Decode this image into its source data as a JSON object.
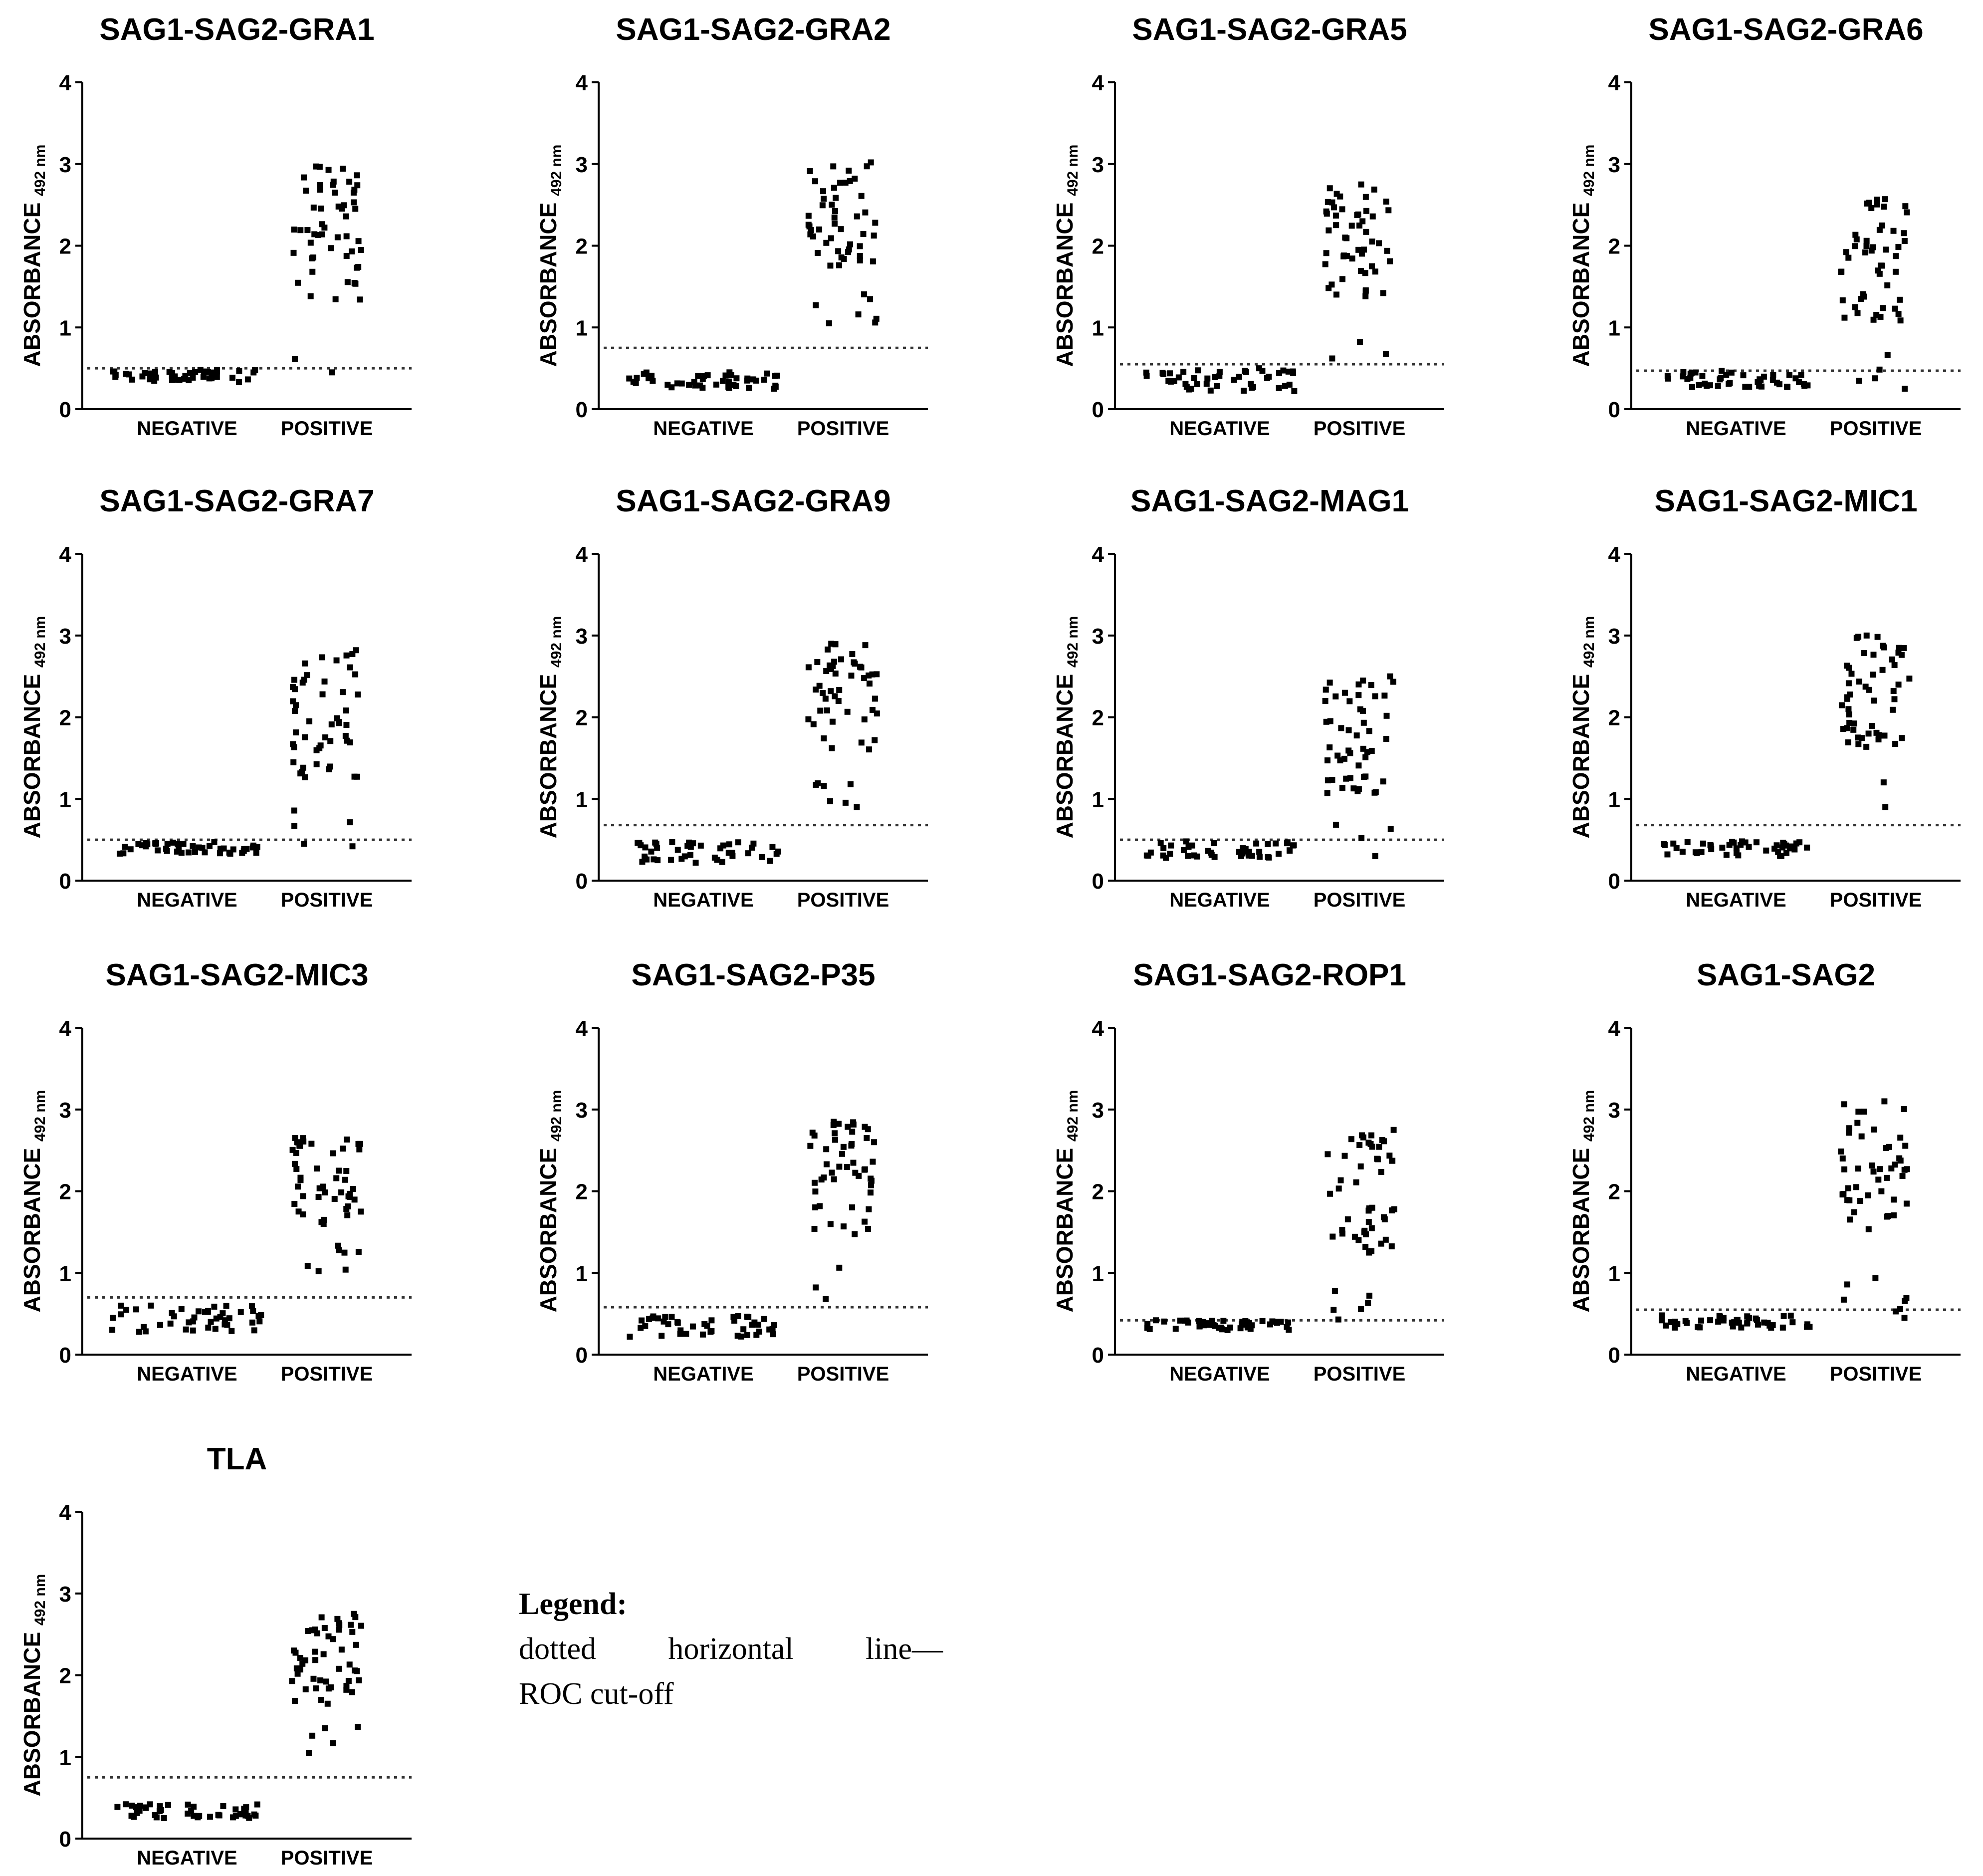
{
  "chart_data": [
    {
      "type": "scatter",
      "title": "SAG1-SAG2-GRA1",
      "ylabel": "ABSORBANCE",
      "ylabel_sub": "492 nm",
      "categories": [
        "NEGATIVE",
        "POSITIVE"
      ],
      "ylim": [
        0,
        4
      ],
      "yticks": [
        "0",
        "1",
        "2",
        "3",
        "4"
      ],
      "cutoff": 0.5,
      "negative": {
        "n": 45,
        "min": 0.33,
        "max": 0.48
      },
      "positive": {
        "n": 55,
        "min": 0.45,
        "max": 2.97
      }
    },
    {
      "type": "scatter",
      "title": "SAG1-SAG2-GRA2",
      "ylabel": "ABSORBANCE",
      "ylabel_sub": "492 nm",
      "categories": [
        "NEGATIVE",
        "POSITIVE"
      ],
      "ylim": [
        0,
        4
      ],
      "yticks": [
        "0",
        "1",
        "2",
        "3",
        "4"
      ],
      "cutoff": 0.75,
      "negative": {
        "n": 45,
        "min": 0.25,
        "max": 0.45
      },
      "positive": {
        "n": 55,
        "min": 1.05,
        "max": 3.02
      }
    },
    {
      "type": "scatter",
      "title": "SAG1-SAG2-GRA5",
      "ylabel": "ABSORBANCE",
      "ylabel_sub": "492 nm",
      "categories": [
        "NEGATIVE",
        "POSITIVE"
      ],
      "ylim": [
        0,
        4
      ],
      "yticks": [
        "0",
        "1",
        "2",
        "3",
        "4"
      ],
      "cutoff": 0.55,
      "negative": {
        "n": 45,
        "min": 0.22,
        "max": 0.5
      },
      "positive": {
        "n": 55,
        "min": 0.62,
        "max": 2.75
      }
    },
    {
      "type": "scatter",
      "title": "SAG1-SAG2-GRA6",
      "ylabel": "ABSORBANCE",
      "ylabel_sub": "492 nm",
      "categories": [
        "NEGATIVE",
        "POSITIVE"
      ],
      "ylim": [
        0,
        4
      ],
      "yticks": [
        "0",
        "1",
        "2",
        "3",
        "4"
      ],
      "cutoff": 0.47,
      "negative": {
        "n": 45,
        "min": 0.27,
        "max": 0.47
      },
      "positive": {
        "n": 55,
        "min": 0.25,
        "max": 2.57
      }
    },
    {
      "type": "scatter",
      "title": "SAG1-SAG2-GRA7",
      "ylabel": "ABSORBANCE",
      "ylabel_sub": "492 nm",
      "categories": [
        "NEGATIVE",
        "POSITIVE"
      ],
      "ylim": [
        0,
        4
      ],
      "yticks": [
        "0",
        "1",
        "2",
        "3",
        "4"
      ],
      "cutoff": 0.5,
      "negative": {
        "n": 45,
        "min": 0.33,
        "max": 0.47
      },
      "positive": {
        "n": 55,
        "min": 0.42,
        "max": 2.82
      }
    },
    {
      "type": "scatter",
      "title": "SAG1-SAG2-GRA9",
      "ylabel": "ABSORBANCE",
      "ylabel_sub": "492 nm",
      "categories": [
        "NEGATIVE",
        "POSITIVE"
      ],
      "ylim": [
        0,
        4
      ],
      "yticks": [
        "0",
        "1",
        "2",
        "3",
        "4"
      ],
      "cutoff": 0.68,
      "negative": {
        "n": 45,
        "min": 0.22,
        "max": 0.47
      },
      "positive": {
        "n": 55,
        "min": 0.9,
        "max": 2.9
      }
    },
    {
      "type": "scatter",
      "title": "SAG1-SAG2-MAG1",
      "ylabel": "ABSORBANCE",
      "ylabel_sub": "492 nm",
      "categories": [
        "NEGATIVE",
        "POSITIVE"
      ],
      "ylim": [
        0,
        4
      ],
      "yticks": [
        "0",
        "1",
        "2",
        "3",
        "4"
      ],
      "cutoff": 0.5,
      "negative": {
        "n": 45,
        "min": 0.28,
        "max": 0.48
      },
      "positive": {
        "n": 55,
        "min": 0.3,
        "max": 2.5
      }
    },
    {
      "type": "scatter",
      "title": "SAG1-SAG2-MIC1",
      "ylabel": "ABSORBANCE",
      "ylabel_sub": "492 nm",
      "categories": [
        "NEGATIVE",
        "POSITIVE"
      ],
      "ylim": [
        0,
        4
      ],
      "yticks": [
        "0",
        "1",
        "2",
        "3",
        "4"
      ],
      "cutoff": 0.68,
      "negative": {
        "n": 45,
        "min": 0.3,
        "max": 0.48
      },
      "positive": {
        "n": 55,
        "min": 0.9,
        "max": 3.0
      }
    },
    {
      "type": "scatter",
      "title": "SAG1-SAG2-MIC3",
      "ylabel": "ABSORBANCE",
      "ylabel_sub": "492 nm",
      "categories": [
        "NEGATIVE",
        "POSITIVE"
      ],
      "ylim": [
        0,
        4
      ],
      "yticks": [
        "0",
        "1",
        "2",
        "3",
        "4"
      ],
      "cutoff": 0.7,
      "negative": {
        "n": 45,
        "min": 0.28,
        "max": 0.6
      },
      "positive": {
        "n": 55,
        "min": 1.02,
        "max": 2.65
      }
    },
    {
      "type": "scatter",
      "title": "SAG1-SAG2-P35",
      "ylabel": "ABSORBANCE",
      "ylabel_sub": "492 nm",
      "categories": [
        "NEGATIVE",
        "POSITIVE"
      ],
      "ylim": [
        0,
        4
      ],
      "yticks": [
        "0",
        "1",
        "2",
        "3",
        "4"
      ],
      "cutoff": 0.58,
      "negative": {
        "n": 45,
        "min": 0.22,
        "max": 0.47
      },
      "positive": {
        "n": 55,
        "min": 0.68,
        "max": 2.85
      }
    },
    {
      "type": "scatter",
      "title": "SAG1-SAG2-ROP1",
      "ylabel": "ABSORBANCE",
      "ylabel_sub": "492 nm",
      "categories": [
        "NEGATIVE",
        "POSITIVE"
      ],
      "ylim": [
        0,
        4
      ],
      "yticks": [
        "0",
        "1",
        "2",
        "3",
        "4"
      ],
      "cutoff": 0.42,
      "negative": {
        "n": 45,
        "min": 0.3,
        "max": 0.42
      },
      "positive": {
        "n": 55,
        "min": 0.43,
        "max": 2.75
      }
    },
    {
      "type": "scatter",
      "title": "SAG1-SAG2",
      "ylabel": "ABSORBANCE",
      "ylabel_sub": "492 nm",
      "categories": [
        "NEGATIVE",
        "POSITIVE"
      ],
      "ylim": [
        0,
        4
      ],
      "yticks": [
        "0",
        "1",
        "2",
        "3",
        "4"
      ],
      "cutoff": 0.55,
      "negative": {
        "n": 45,
        "min": 0.33,
        "max": 0.48
      },
      "positive": {
        "n": 55,
        "min": 0.45,
        "max": 3.1
      }
    },
    {
      "type": "scatter",
      "title": "TLA",
      "ylabel": "ABSORBANCE",
      "ylabel_sub": "492 nm",
      "categories": [
        "NEGATIVE",
        "POSITIVE"
      ],
      "ylim": [
        0,
        4
      ],
      "yticks": [
        "0",
        "1",
        "2",
        "3",
        "4"
      ],
      "cutoff": 0.75,
      "negative": {
        "n": 45,
        "min": 0.25,
        "max": 0.42
      },
      "positive": {
        "n": 55,
        "min": 1.05,
        "max": 2.75
      }
    }
  ],
  "legend": {
    "title": "Legend:",
    "line1_words": [
      "dotted",
      "horizontal",
      "line—"
    ],
    "line2": "ROC cut-off"
  }
}
